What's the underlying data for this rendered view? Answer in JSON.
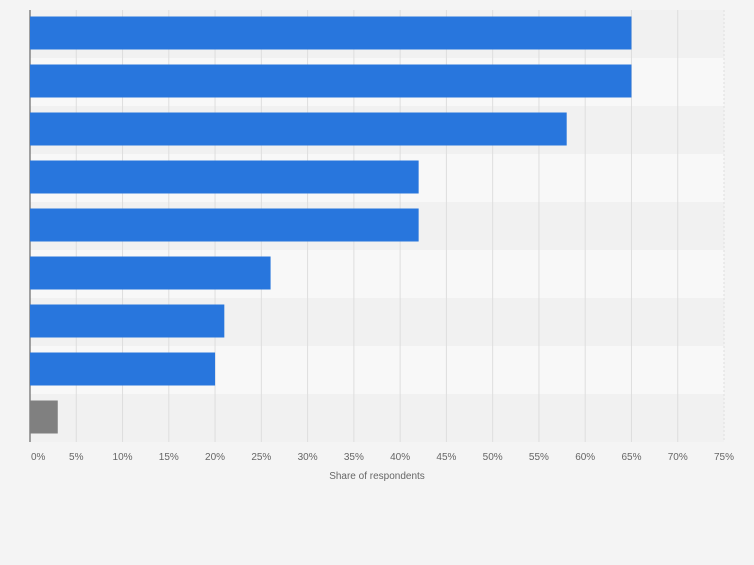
{
  "chart_data": {
    "type": "bar",
    "orientation": "horizontal",
    "categories": [
      "",
      "",
      "",
      "",
      "",
      "",
      "",
      "",
      ""
    ],
    "values": [
      65,
      65,
      58,
      42,
      42,
      26,
      21,
      20,
      3
    ],
    "bar_colors": [
      "#2876dd",
      "#2876dd",
      "#2876dd",
      "#2876dd",
      "#2876dd",
      "#2876dd",
      "#2876dd",
      "#2876dd",
      "#808080"
    ],
    "xlim": [
      0,
      75
    ],
    "x_ticks": [
      "0%",
      "5%",
      "10%",
      "15%",
      "20%",
      "25%",
      "30%",
      "35%",
      "40%",
      "45%",
      "50%",
      "55%",
      "60%",
      "65%",
      "70%",
      "75%"
    ],
    "xlabel": "Share of respondents",
    "ylabel": "",
    "title": "",
    "grid": true,
    "legend": "none"
  }
}
